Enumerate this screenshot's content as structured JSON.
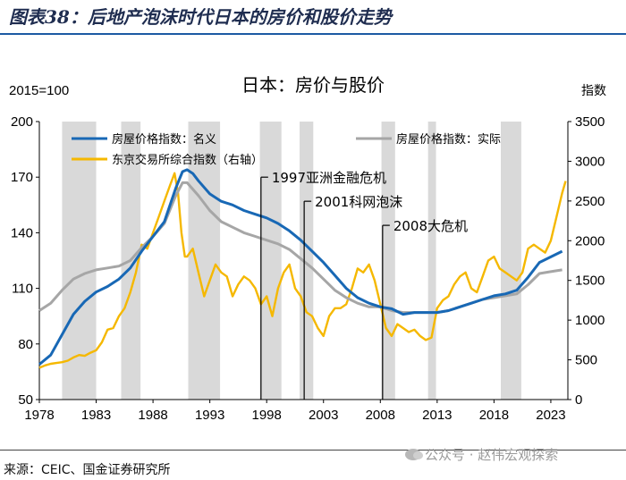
{
  "header": {
    "title": "图表38：后地产泡沫时代日本的房价和股价走势"
  },
  "footer": {
    "source": "来源：CEIC、国金证券研究所",
    "watermark": "公众号 · 赵伟宏观探索"
  },
  "colors": {
    "nominal": "#1868b5",
    "real": "#a6a6a6",
    "topix": "#f5b800",
    "shade": "#d9d9d9",
    "axis": "#000000",
    "accent": "#1c5aa3"
  },
  "chart_data": {
    "type": "line",
    "title": "日本：房价与股价",
    "left_axis_unit": "2015=100",
    "right_axis_unit": "指数",
    "ylim": [
      50,
      200
    ],
    "y2lim": [
      0,
      3500
    ],
    "xlim": [
      1978,
      2024.5
    ],
    "yticks": [
      50,
      80,
      110,
      140,
      170,
      200
    ],
    "y2ticks": [
      0,
      500,
      1000,
      1500,
      2000,
      2500,
      3000,
      3500
    ],
    "xticks": [
      1978,
      1983,
      1988,
      1993,
      1998,
      2003,
      2008,
      2013,
      2018,
      2023
    ],
    "legend_position": "top",
    "shaded_periods": [
      [
        1980.0,
        1983.0
      ],
      [
        1985.2,
        1986.9
      ],
      [
        1991.1,
        1993.9
      ],
      [
        1997.4,
        1999.3
      ],
      [
        2000.9,
        2002.1
      ],
      [
        2008.1,
        2009.3
      ],
      [
        2012.2,
        2012.9
      ],
      [
        2018.6,
        2020.4
      ]
    ],
    "annotations": [
      {
        "text": "1997亚洲金融危机",
        "x": 1997.5,
        "y": 170
      },
      {
        "text": "2001科网泡沫",
        "x": 2001.3,
        "y": 157
      },
      {
        "text": "2008大危机",
        "x": 2008.2,
        "y": 144
      }
    ],
    "series": [
      {
        "name": "房屋价格指数：名义",
        "axis": "left",
        "x": [
          1978,
          1979,
          1980,
          1981,
          1982,
          1983,
          1984,
          1985,
          1986,
          1987,
          1988,
          1989,
          1990,
          1990.6,
          1991,
          1991.5,
          1992,
          1993,
          1994,
          1995,
          1996,
          1997,
          1998,
          1999,
          2000,
          2001,
          2002,
          2003,
          2004,
          2005,
          2006,
          2007,
          2008,
          2009,
          2010,
          2011,
          2012,
          2013,
          2014,
          2015,
          2016,
          2017,
          2018,
          2019,
          2020,
          2021,
          2022,
          2023,
          2024
        ],
        "values": [
          69,
          74,
          85,
          96,
          103,
          108,
          111,
          115,
          121,
          130,
          138,
          146,
          164,
          173,
          174,
          172,
          168,
          161,
          157,
          155,
          152,
          150,
          148,
          145,
          141,
          136,
          130,
          124,
          117,
          110,
          105,
          102,
          100,
          99,
          96,
          97,
          97,
          97,
          98,
          100,
          102,
          104,
          106,
          107,
          109,
          116,
          124,
          127,
          130
        ]
      },
      {
        "name": "房屋价格指数：实际",
        "axis": "left",
        "x": [
          1978,
          1979,
          1980,
          1981,
          1982,
          1983,
          1984,
          1985,
          1986,
          1987,
          1988,
          1989,
          1990,
          1990.6,
          1991,
          1992,
          1993,
          1994,
          1995,
          1996,
          1997,
          1998,
          1999,
          2000,
          2001,
          2002,
          2003,
          2004,
          2005,
          2006,
          2007,
          2008,
          2009,
          2010,
          2011,
          2012,
          2013,
          2014,
          2015,
          2016,
          2017,
          2018,
          2019,
          2020,
          2021,
          2022,
          2023,
          2024
        ],
        "values": [
          98,
          102,
          109,
          115,
          118,
          120,
          121,
          122,
          125,
          132,
          138,
          145,
          160,
          167,
          167,
          160,
          152,
          146,
          143,
          140,
          138,
          136,
          134,
          131,
          126,
          121,
          115,
          109,
          105,
          102,
          100,
          100,
          98,
          97,
          97,
          97,
          97,
          98,
          100,
          102,
          104,
          105,
          106,
          107,
          112,
          118,
          119,
          120
        ]
      },
      {
        "name": "东京交易所综合指数（右轴）",
        "axis": "right",
        "x": [
          1978,
          1978.5,
          1979,
          1979.5,
          1980,
          1980.5,
          1981,
          1981.5,
          1982,
          1982.5,
          1983,
          1983.5,
          1984,
          1984.5,
          1985,
          1985.5,
          1986,
          1986.5,
          1987,
          1987.5,
          1988,
          1988.5,
          1989,
          1989.5,
          1989.9,
          1990.2,
          1990.5,
          1990.8,
          1991,
          1991.5,
          1992,
          1992.5,
          1993,
          1993.5,
          1994,
          1994.5,
          1995,
          1995.5,
          1996,
          1996.5,
          1997,
          1997.5,
          1998,
          1998.5,
          1999,
          1999.5,
          2000,
          2000.5,
          2001,
          2001.5,
          2002,
          2002.5,
          2003,
          2003.5,
          2004,
          2004.5,
          2005,
          2005.5,
          2006,
          2006.5,
          2007,
          2007.5,
          2008,
          2008.5,
          2009,
          2009.5,
          2010,
          2010.5,
          2011,
          2011.5,
          2012,
          2012.5,
          2013,
          2013.5,
          2014,
          2014.5,
          2015,
          2015.5,
          2016,
          2016.5,
          2017,
          2017.5,
          2018,
          2018.5,
          2019,
          2019.5,
          2020,
          2020.5,
          2021,
          2021.5,
          2022,
          2022.5,
          2023,
          2023.5,
          2024,
          2024.3
        ],
        "values": [
          400,
          430,
          450,
          460,
          470,
          490,
          530,
          560,
          550,
          590,
          620,
          720,
          880,
          900,
          1050,
          1150,
          1350,
          1600,
          1950,
          1900,
          2100,
          2300,
          2500,
          2700,
          2850,
          2600,
          2100,
          1800,
          1800,
          1900,
          1600,
          1300,
          1500,
          1700,
          1600,
          1550,
          1300,
          1450,
          1550,
          1500,
          1400,
          1200,
          1300,
          1050,
          1400,
          1600,
          1700,
          1400,
          1300,
          1100,
          1050,
          900,
          800,
          1050,
          1150,
          1150,
          1200,
          1400,
          1650,
          1600,
          1700,
          1500,
          1200,
          900,
          800,
          950,
          900,
          850,
          880,
          800,
          750,
          780,
          1150,
          1250,
          1300,
          1450,
          1550,
          1600,
          1400,
          1350,
          1550,
          1750,
          1800,
          1650,
          1600,
          1550,
          1500,
          1600,
          1900,
          1950,
          1900,
          1850,
          2000,
          2300,
          2600,
          2750
        ]
      }
    ]
  }
}
